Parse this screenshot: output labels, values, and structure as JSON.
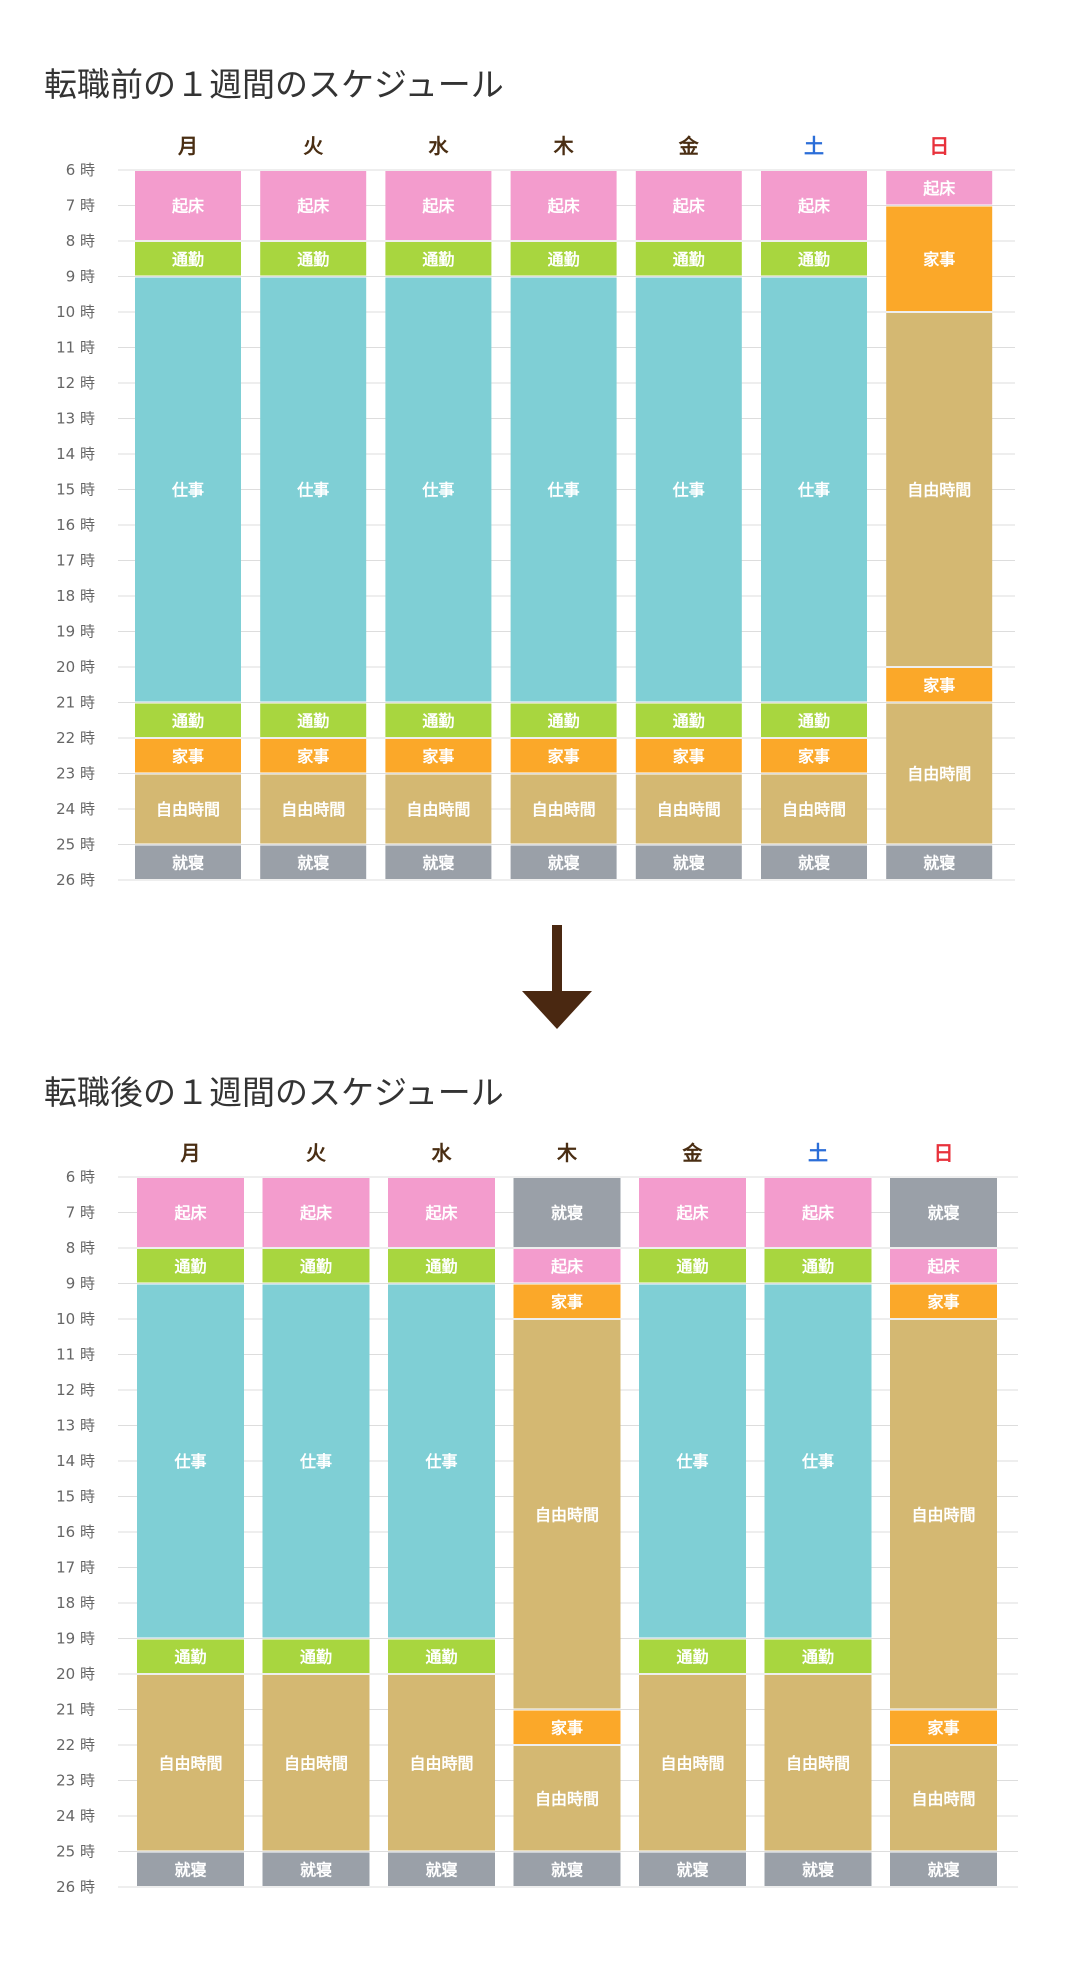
{
  "colors": {
    "起床": "#f39ccd",
    "通勤": "#a8d63f",
    "仕事": "#7fcfd5",
    "家事": "#fba829",
    "自由時間": "#d4b872",
    "就寝": "#9aa0a8",
    "weekday": "#4a2e13",
    "saturday": "#2b6ed8",
    "sunday": "#e8323c",
    "grid": "#dddddd",
    "hour_label": "#666666",
    "arrow": "#4a2811"
  },
  "chart_data": [
    {
      "type": "bar",
      "title": "転職前の１週間のスケジュール",
      "categories": [
        "月",
        "火",
        "水",
        "木",
        "金",
        "土",
        "日"
      ],
      "y_ticks": [
        "6 時",
        "7 時",
        "8 時",
        "9 時",
        "10 時",
        "11 時",
        "12 時",
        "13 時",
        "14 時",
        "15 時",
        "16 時",
        "17 時",
        "18 時",
        "19 時",
        "20 時",
        "21 時",
        "22 時",
        "23 時",
        "24 時",
        "25 時",
        "26 時"
      ],
      "ylim": [
        6,
        26
      ],
      "grid": true,
      "days": [
        {
          "day": "月",
          "blocks": [
            {
              "label": "起床",
              "start": 6,
              "end": 8
            },
            {
              "label": "通勤",
              "start": 8,
              "end": 9
            },
            {
              "label": "仕事",
              "start": 9,
              "end": 21
            },
            {
              "label": "通勤",
              "start": 21,
              "end": 22
            },
            {
              "label": "家事",
              "start": 22,
              "end": 23
            },
            {
              "label": "自由時間",
              "start": 23,
              "end": 25
            },
            {
              "label": "就寝",
              "start": 25,
              "end": 26
            }
          ]
        },
        {
          "day": "火",
          "blocks": [
            {
              "label": "起床",
              "start": 6,
              "end": 8
            },
            {
              "label": "通勤",
              "start": 8,
              "end": 9
            },
            {
              "label": "仕事",
              "start": 9,
              "end": 21
            },
            {
              "label": "通勤",
              "start": 21,
              "end": 22
            },
            {
              "label": "家事",
              "start": 22,
              "end": 23
            },
            {
              "label": "自由時間",
              "start": 23,
              "end": 25
            },
            {
              "label": "就寝",
              "start": 25,
              "end": 26
            }
          ]
        },
        {
          "day": "水",
          "blocks": [
            {
              "label": "起床",
              "start": 6,
              "end": 8
            },
            {
              "label": "通勤",
              "start": 8,
              "end": 9
            },
            {
              "label": "仕事",
              "start": 9,
              "end": 21
            },
            {
              "label": "通勤",
              "start": 21,
              "end": 22
            },
            {
              "label": "家事",
              "start": 22,
              "end": 23
            },
            {
              "label": "自由時間",
              "start": 23,
              "end": 25
            },
            {
              "label": "就寝",
              "start": 25,
              "end": 26
            }
          ]
        },
        {
          "day": "木",
          "blocks": [
            {
              "label": "起床",
              "start": 6,
              "end": 8
            },
            {
              "label": "通勤",
              "start": 8,
              "end": 9
            },
            {
              "label": "仕事",
              "start": 9,
              "end": 21
            },
            {
              "label": "通勤",
              "start": 21,
              "end": 22
            },
            {
              "label": "家事",
              "start": 22,
              "end": 23
            },
            {
              "label": "自由時間",
              "start": 23,
              "end": 25
            },
            {
              "label": "就寝",
              "start": 25,
              "end": 26
            }
          ]
        },
        {
          "day": "金",
          "blocks": [
            {
              "label": "起床",
              "start": 6,
              "end": 8
            },
            {
              "label": "通勤",
              "start": 8,
              "end": 9
            },
            {
              "label": "仕事",
              "start": 9,
              "end": 21
            },
            {
              "label": "通勤",
              "start": 21,
              "end": 22
            },
            {
              "label": "家事",
              "start": 22,
              "end": 23
            },
            {
              "label": "自由時間",
              "start": 23,
              "end": 25
            },
            {
              "label": "就寝",
              "start": 25,
              "end": 26
            }
          ]
        },
        {
          "day": "土",
          "blocks": [
            {
              "label": "起床",
              "start": 6,
              "end": 8
            },
            {
              "label": "通勤",
              "start": 8,
              "end": 9
            },
            {
              "label": "仕事",
              "start": 9,
              "end": 21
            },
            {
              "label": "通勤",
              "start": 21,
              "end": 22
            },
            {
              "label": "家事",
              "start": 22,
              "end": 23
            },
            {
              "label": "自由時間",
              "start": 23,
              "end": 25
            },
            {
              "label": "就寝",
              "start": 25,
              "end": 26
            }
          ]
        },
        {
          "day": "日",
          "blocks": [
            {
              "label": "起床",
              "start": 6,
              "end": 7
            },
            {
              "label": "家事",
              "start": 7,
              "end": 10
            },
            {
              "label": "自由時間",
              "start": 10,
              "end": 20
            },
            {
              "label": "家事",
              "start": 20,
              "end": 21
            },
            {
              "label": "自由時間",
              "start": 21,
              "end": 25
            },
            {
              "label": "就寝",
              "start": 25,
              "end": 26
            }
          ]
        }
      ]
    },
    {
      "type": "bar",
      "title": "転職後の１週間のスケジュール",
      "categories": [
        "月",
        "火",
        "水",
        "木",
        "金",
        "土",
        "日"
      ],
      "y_ticks": [
        "6 時",
        "7 時",
        "8 時",
        "9 時",
        "10 時",
        "11 時",
        "12 時",
        "13 時",
        "14 時",
        "15 時",
        "16 時",
        "17 時",
        "18 時",
        "19 時",
        "20 時",
        "21 時",
        "22 時",
        "23 時",
        "24 時",
        "25 時",
        "26 時"
      ],
      "ylim": [
        6,
        26
      ],
      "grid": true,
      "days": [
        {
          "day": "月",
          "blocks": [
            {
              "label": "起床",
              "start": 6,
              "end": 8
            },
            {
              "label": "通勤",
              "start": 8,
              "end": 9
            },
            {
              "label": "仕事",
              "start": 9,
              "end": 19
            },
            {
              "label": "通勤",
              "start": 19,
              "end": 20
            },
            {
              "label": "自由時間",
              "start": 20,
              "end": 25
            },
            {
              "label": "就寝",
              "start": 25,
              "end": 26
            }
          ]
        },
        {
          "day": "火",
          "blocks": [
            {
              "label": "起床",
              "start": 6,
              "end": 8
            },
            {
              "label": "通勤",
              "start": 8,
              "end": 9
            },
            {
              "label": "仕事",
              "start": 9,
              "end": 19
            },
            {
              "label": "通勤",
              "start": 19,
              "end": 20
            },
            {
              "label": "自由時間",
              "start": 20,
              "end": 25
            },
            {
              "label": "就寝",
              "start": 25,
              "end": 26
            }
          ]
        },
        {
          "day": "水",
          "blocks": [
            {
              "label": "起床",
              "start": 6,
              "end": 8
            },
            {
              "label": "通勤",
              "start": 8,
              "end": 9
            },
            {
              "label": "仕事",
              "start": 9,
              "end": 19
            },
            {
              "label": "通勤",
              "start": 19,
              "end": 20
            },
            {
              "label": "自由時間",
              "start": 20,
              "end": 25
            },
            {
              "label": "就寝",
              "start": 25,
              "end": 26
            }
          ]
        },
        {
          "day": "木",
          "blocks": [
            {
              "label": "就寝",
              "start": 6,
              "end": 8
            },
            {
              "label": "起床",
              "start": 8,
              "end": 9
            },
            {
              "label": "家事",
              "start": 9,
              "end": 10
            },
            {
              "label": "自由時間",
              "start": 10,
              "end": 21
            },
            {
              "label": "家事",
              "start": 21,
              "end": 22
            },
            {
              "label": "自由時間",
              "start": 22,
              "end": 25
            },
            {
              "label": "就寝",
              "start": 25,
              "end": 26
            }
          ]
        },
        {
          "day": "金",
          "blocks": [
            {
              "label": "起床",
              "start": 6,
              "end": 8
            },
            {
              "label": "通勤",
              "start": 8,
              "end": 9
            },
            {
              "label": "仕事",
              "start": 9,
              "end": 19
            },
            {
              "label": "通勤",
              "start": 19,
              "end": 20
            },
            {
              "label": "自由時間",
              "start": 20,
              "end": 25
            },
            {
              "label": "就寝",
              "start": 25,
              "end": 26
            }
          ]
        },
        {
          "day": "土",
          "blocks": [
            {
              "label": "起床",
              "start": 6,
              "end": 8
            },
            {
              "label": "通勤",
              "start": 8,
              "end": 9
            },
            {
              "label": "仕事",
              "start": 9,
              "end": 19
            },
            {
              "label": "通勤",
              "start": 19,
              "end": 20
            },
            {
              "label": "自由時間",
              "start": 20,
              "end": 25
            },
            {
              "label": "就寝",
              "start": 25,
              "end": 26
            }
          ]
        },
        {
          "day": "日",
          "blocks": [
            {
              "label": "就寝",
              "start": 6,
              "end": 8
            },
            {
              "label": "起床",
              "start": 8,
              "end": 9
            },
            {
              "label": "家事",
              "start": 9,
              "end": 10
            },
            {
              "label": "自由時間",
              "start": 10,
              "end": 21
            },
            {
              "label": "家事",
              "start": 21,
              "end": 22
            },
            {
              "label": "自由時間",
              "start": 22,
              "end": 25
            },
            {
              "label": "就寝",
              "start": 25,
              "end": 26
            }
          ]
        }
      ]
    }
  ]
}
